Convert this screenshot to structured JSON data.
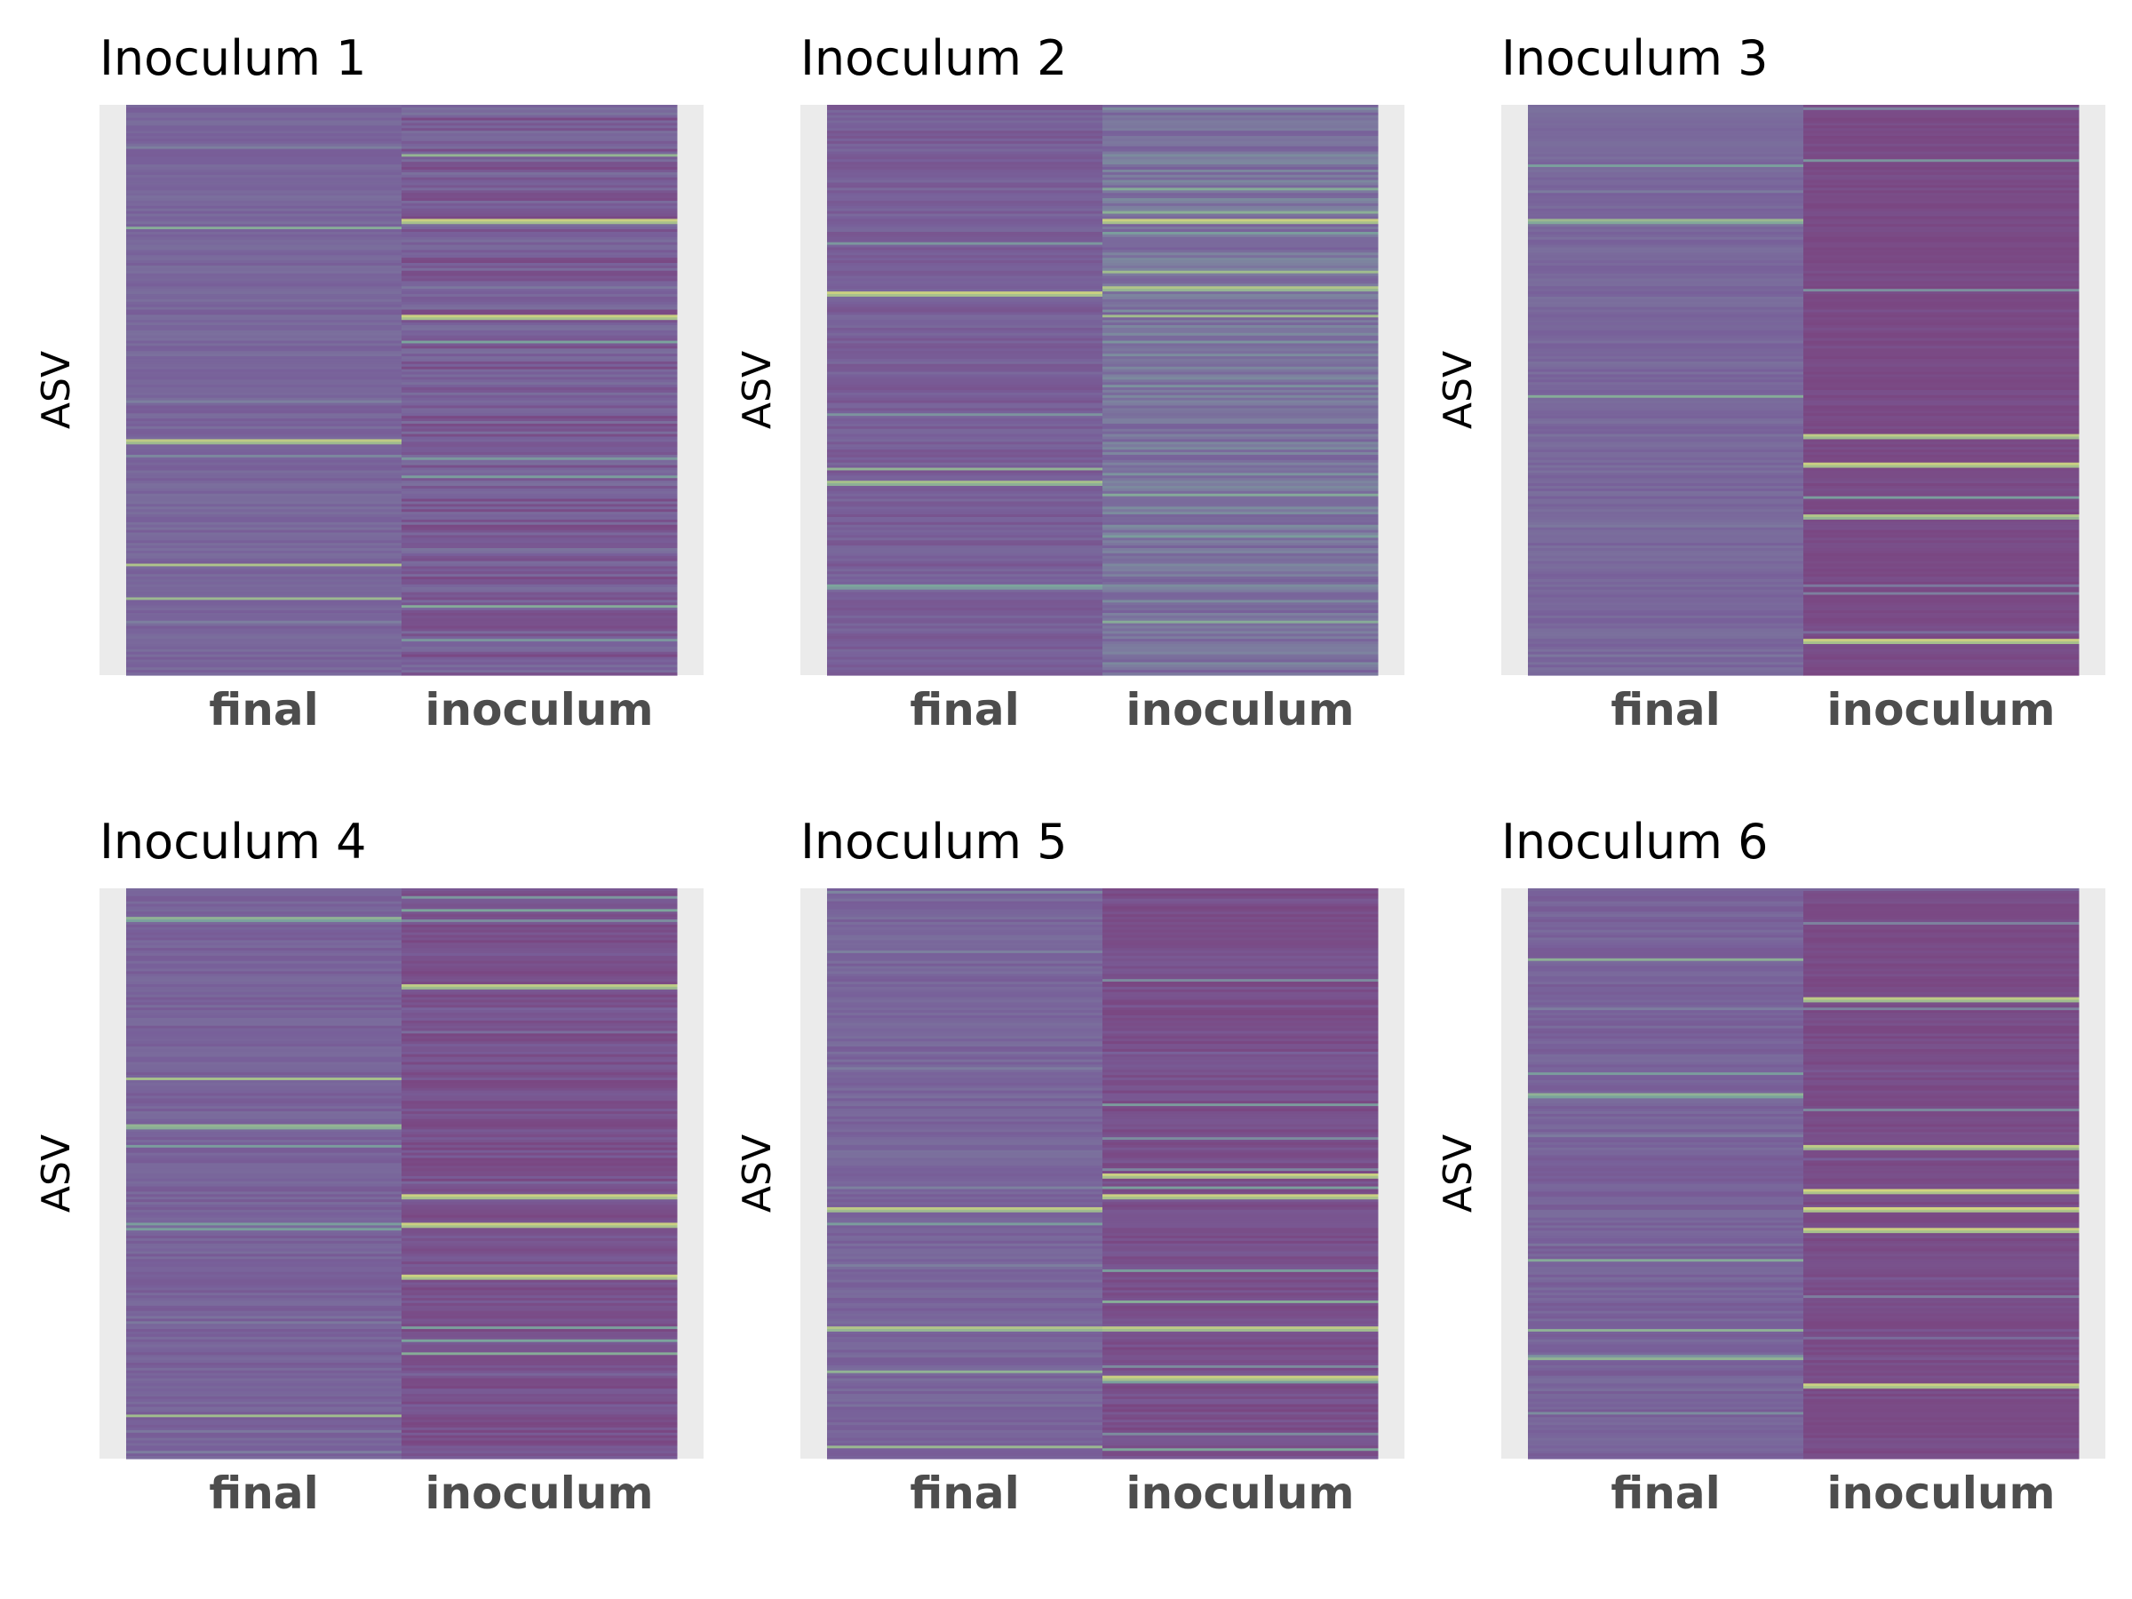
{
  "chart_data": [
    {
      "type": "heatmap",
      "title": "Inoculum 1",
      "ylabel": "ASV",
      "categories": [
        "final",
        "inoculum"
      ],
      "seed": 11,
      "n_rows": 220,
      "columns": [
        {
          "base": 0.22,
          "spread": 0.14,
          "highlights": [
            {
              "pos": 0.59,
              "level": 0.9
            }
          ]
        },
        {
          "base": 0.12,
          "spread": 0.3,
          "highlights": [
            {
              "pos": 0.2,
              "level": 0.95
            },
            {
              "pos": 0.37,
              "level": 0.95
            }
          ]
        }
      ]
    },
    {
      "type": "heatmap",
      "title": "Inoculum 2",
      "ylabel": "ASV",
      "categories": [
        "final",
        "inoculum"
      ],
      "seed": 23,
      "n_rows": 220,
      "columns": [
        {
          "base": 0.16,
          "spread": 0.16,
          "highlights": [
            {
              "pos": 0.33,
              "level": 0.95
            },
            {
              "pos": 0.66,
              "level": 0.8
            }
          ]
        },
        {
          "base": 0.3,
          "spread": 0.28,
          "highlights": [
            {
              "pos": 0.2,
              "level": 0.95
            },
            {
              "pos": 0.32,
              "level": 0.85
            }
          ]
        }
      ]
    },
    {
      "type": "heatmap",
      "title": "Inoculum 3",
      "ylabel": "ASV",
      "categories": [
        "final",
        "inoculum"
      ],
      "seed": 37,
      "n_rows": 220,
      "columns": [
        {
          "base": 0.24,
          "spread": 0.12,
          "highlights": [
            {
              "pos": 0.2,
              "level": 0.75
            }
          ]
        },
        {
          "base": 0.02,
          "spread": 0.1,
          "highlights": [
            {
              "pos": 0.58,
              "level": 0.9
            },
            {
              "pos": 0.63,
              "level": 0.95
            },
            {
              "pos": 0.72,
              "level": 0.85
            },
            {
              "pos": 0.94,
              "level": 0.95
            }
          ]
        }
      ]
    },
    {
      "type": "heatmap",
      "title": "Inoculum 4",
      "ylabel": "ASV",
      "categories": [
        "final",
        "inoculum"
      ],
      "seed": 41,
      "n_rows": 220,
      "columns": [
        {
          "base": 0.2,
          "spread": 0.14,
          "highlights": [
            {
              "pos": 0.05,
              "level": 0.7
            }
          ]
        },
        {
          "base": 0.05,
          "spread": 0.2,
          "highlights": [
            {
              "pos": 0.17,
              "level": 0.9
            },
            {
              "pos": 0.54,
              "level": 0.95
            },
            {
              "pos": 0.59,
              "level": 0.95
            },
            {
              "pos": 0.68,
              "level": 0.95
            }
          ]
        }
      ]
    },
    {
      "type": "heatmap",
      "title": "Inoculum 5",
      "ylabel": "ASV",
      "categories": [
        "final",
        "inoculum"
      ],
      "seed": 53,
      "n_rows": 220,
      "columns": [
        {
          "base": 0.22,
          "spread": 0.14,
          "highlights": [
            {
              "pos": 0.56,
              "level": 0.9
            },
            {
              "pos": 0.77,
              "level": 0.85
            }
          ]
        },
        {
          "base": 0.05,
          "spread": 0.16,
          "highlights": [
            {
              "pos": 0.5,
              "level": 0.95
            },
            {
              "pos": 0.54,
              "level": 0.95
            },
            {
              "pos": 0.77,
              "level": 0.9
            },
            {
              "pos": 0.86,
              "level": 0.95
            }
          ]
        }
      ]
    },
    {
      "type": "heatmap",
      "title": "Inoculum 6",
      "ylabel": "ASV",
      "categories": [
        "final",
        "inoculum"
      ],
      "seed": 67,
      "n_rows": 220,
      "columns": [
        {
          "base": 0.2,
          "spread": 0.14,
          "highlights": [
            {
              "pos": 0.36,
              "level": 0.7
            }
          ]
        },
        {
          "base": 0.03,
          "spread": 0.1,
          "highlights": [
            {
              "pos": 0.19,
              "level": 0.9
            },
            {
              "pos": 0.45,
              "level": 0.9
            },
            {
              "pos": 0.53,
              "level": 0.98
            },
            {
              "pos": 0.56,
              "level": 0.98
            },
            {
              "pos": 0.6,
              "level": 0.95
            },
            {
              "pos": 0.87,
              "level": 0.95
            }
          ]
        }
      ]
    }
  ],
  "colors": {
    "background": "#ebebeb",
    "tick_text": "#4d4d4d",
    "colormap": [
      "#7a4782",
      "#78609a",
      "#7d7d9f",
      "#7ba49d",
      "#a5bf8c",
      "#d6d67f"
    ]
  }
}
